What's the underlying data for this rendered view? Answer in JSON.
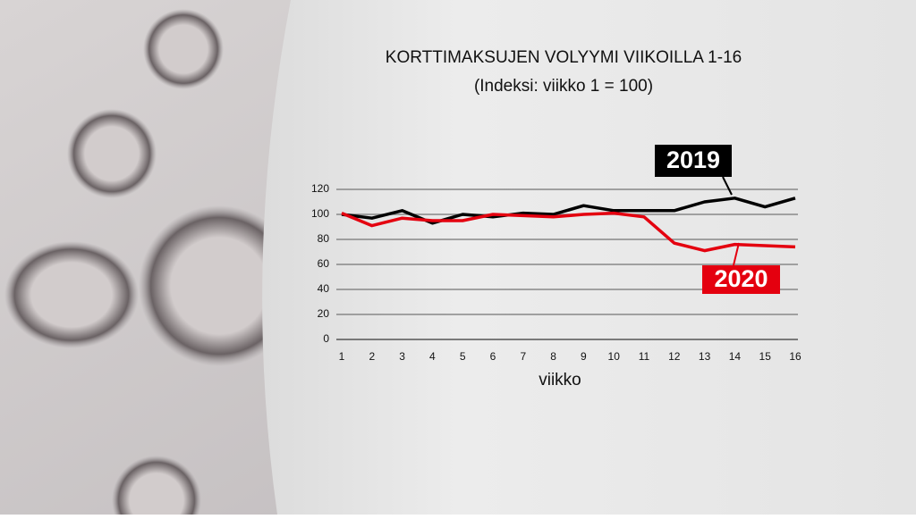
{
  "chart_data": {
    "type": "line",
    "title": "KORTTIMAKSUJEN VOLYYMI VIIKOILLA 1-16",
    "subtitle": "(Indeksi: viikko 1 = 100)",
    "x_label": "viikko",
    "x": [
      1,
      2,
      3,
      4,
      5,
      6,
      7,
      8,
      9,
      10,
      11,
      12,
      13,
      14,
      15,
      16
    ],
    "xlim": [
      1,
      16
    ],
    "xticks": [
      1,
      2,
      3,
      4,
      5,
      6,
      7,
      8,
      9,
      10,
      11,
      12,
      13,
      14,
      15,
      16
    ],
    "ylim": [
      0,
      120
    ],
    "yticks": [
      0,
      20,
      40,
      60,
      80,
      100,
      120
    ],
    "grid": true,
    "series": [
      {
        "name": "2019",
        "color": "#000000",
        "values": [
          100,
          97,
          103,
          93,
          100,
          98,
          101,
          100,
          107,
          103,
          103,
          103,
          110,
          113,
          106,
          113
        ]
      },
      {
        "name": "2020",
        "color": "#e4000f",
        "values": [
          101,
          91,
          97,
          95,
          95,
          100,
          99,
          98,
          100,
          101,
          98,
          77,
          71,
          76,
          75,
          74
        ]
      }
    ]
  }
}
